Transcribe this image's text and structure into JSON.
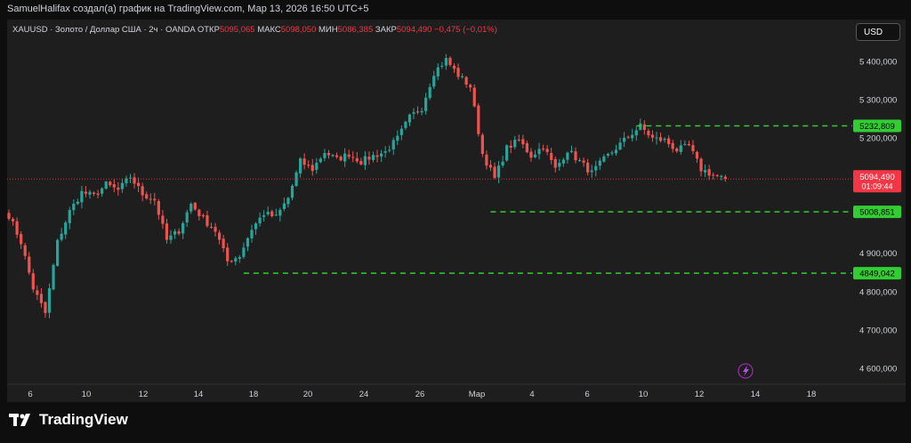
{
  "caption": "SamuelHalifax создал(а) график на TradingView.com, Мар 13, 2026 16:50 UTC+5",
  "header": {
    "symbol": "XAUUSD · Золото / Доллар США · 2ч · OANDA",
    "open_label": "ОТКР",
    "open": "5095,065",
    "high_label": "МАКС",
    "high": "5098,050",
    "low_label": "МИН",
    "low": "5086,385",
    "close_label": "ЗАКР",
    "close": "5094,490",
    "change": "−0,475 (−0,01%)"
  },
  "currency_button": "USD",
  "brand": "TradingView",
  "colors": {
    "up": "#26a69a",
    "down": "#ef5350",
    "level": "#32cd32",
    "background": "#1e1e1e",
    "price_tag": "#f23645"
  },
  "chart_data": {
    "type": "candlestick",
    "ylim": [
      4560,
      5440
    ],
    "yticks": [
      {
        "value": 5400,
        "label": "5 400,000"
      },
      {
        "value": 5300,
        "label": "5 300,000"
      },
      {
        "value": 5200,
        "label": "5 200,000"
      },
      {
        "value": 4900,
        "label": "4 900,000"
      },
      {
        "value": 4800,
        "label": "4 800,000"
      },
      {
        "value": 4700,
        "label": "4 700,000"
      },
      {
        "value": 4600,
        "label": "4 600,000"
      }
    ],
    "xticks": [
      "6",
      "10",
      "12",
      "14",
      "18",
      "20",
      "24",
      "26",
      "Мар",
      "4",
      "6",
      "10",
      "12",
      "14",
      "18"
    ],
    "path": [
      [
        0,
        5000
      ],
      [
        3,
        4930
      ],
      [
        6,
        4810
      ],
      [
        9,
        4745
      ],
      [
        12,
        4930
      ],
      [
        15,
        5010
      ],
      [
        18,
        5060
      ],
      [
        21,
        5050
      ],
      [
        24,
        5080
      ],
      [
        27,
        5065
      ],
      [
        30,
        5100
      ],
      [
        33,
        5055
      ],
      [
        36,
        5040
      ],
      [
        39,
        4935
      ],
      [
        42,
        4960
      ],
      [
        45,
        5030
      ],
      [
        48,
        4990
      ],
      [
        51,
        4960
      ],
      [
        54,
        4880
      ],
      [
        57,
        4895
      ],
      [
        60,
        4965
      ],
      [
        63,
        5005
      ],
      [
        66,
        4995
      ],
      [
        69,
        5045
      ],
      [
        72,
        5140
      ],
      [
        75,
        5120
      ],
      [
        78,
        5165
      ],
      [
        81,
        5145
      ],
      [
        84,
        5160
      ],
      [
        87,
        5140
      ],
      [
        90,
        5155
      ],
      [
        93,
        5165
      ],
      [
        96,
        5200
      ],
      [
        99,
        5255
      ],
      [
        102,
        5280
      ],
      [
        105,
        5372
      ],
      [
        108,
        5405
      ],
      [
        111,
        5365
      ],
      [
        114,
        5335
      ],
      [
        117,
        5160
      ],
      [
        120,
        5095
      ],
      [
        123,
        5175
      ],
      [
        126,
        5195
      ],
      [
        129,
        5155
      ],
      [
        132,
        5180
      ],
      [
        135,
        5120
      ],
      [
        138,
        5170
      ],
      [
        141,
        5140
      ],
      [
        144,
        5110
      ],
      [
        147,
        5145
      ],
      [
        150,
        5175
      ],
      [
        153,
        5205
      ],
      [
        156,
        5232
      ],
      [
        159,
        5200
      ],
      [
        162,
        5195
      ],
      [
        165,
        5170
      ],
      [
        168,
        5180
      ],
      [
        171,
        5120
      ],
      [
        174,
        5105
      ],
      [
        177,
        5094
      ]
    ],
    "levels": [
      {
        "value": 5232.809,
        "label": "5232,809",
        "start": 155
      },
      {
        "value": 5008.851,
        "label": "5008,851",
        "start": 119
      },
      {
        "value": 4849.042,
        "label": "4849,042",
        "start": 58
      }
    ],
    "last_price": {
      "value": 5094.49,
      "label": "5094,490",
      "countdown": "01:09:44"
    }
  }
}
